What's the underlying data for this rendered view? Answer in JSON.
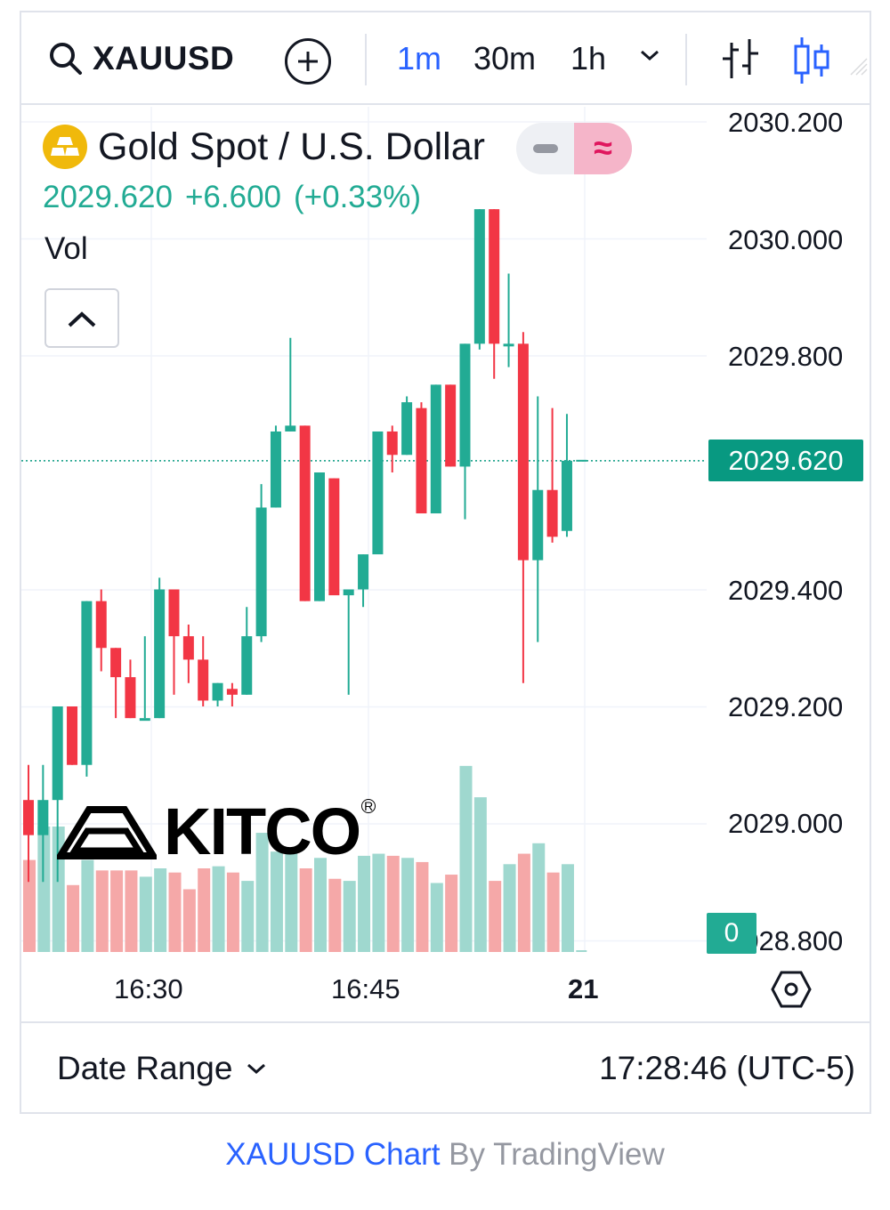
{
  "toolbar": {
    "symbol": "XAUUSD",
    "timeframes": [
      "1m",
      "30m",
      "1h"
    ],
    "active_timeframe": "1m"
  },
  "legend": {
    "title": "Gold Spot / U.S. Dollar",
    "last": "2029.620",
    "change": "+6.600",
    "change_pct": "(+0.33%)",
    "volume_label": "Vol"
  },
  "price_axis": {
    "labels": [
      "2030.200",
      "2030.000",
      "2029.800",
      "2029.400",
      "2029.200",
      "2029.000",
      "2028.800"
    ],
    "last_price_label": "2029.620",
    "volume_zero_label": "0"
  },
  "time_axis": {
    "labels": [
      "16:30",
      "16:45",
      "21"
    ]
  },
  "watermark": {
    "text": "KITCO"
  },
  "footer": {
    "date_range_label": "Date Range",
    "clock": "17:28:46 (UTC-5)"
  },
  "credit": {
    "symbol_link": "XAUUSD Chart",
    "by": " By TradingView"
  },
  "colors": {
    "up": "#22ab94",
    "down": "#f23645",
    "up_volume": "#9fd8cf",
    "down_volume": "#f5a8a8",
    "accent": "#2962ff"
  },
  "chart_data": {
    "type": "candlestick",
    "interval": "1m",
    "y_range": [
      2028.8,
      2030.22
    ],
    "last_price": 2029.62,
    "candles": [
      {
        "o": 2029.04,
        "h": 2029.1,
        "l": 2028.9,
        "c": 2028.98,
        "v": 0.44
      },
      {
        "o": 2028.98,
        "h": 2029.1,
        "l": 2028.9,
        "c": 2029.04,
        "v": 0.6
      },
      {
        "o": 2029.04,
        "h": 2029.2,
        "l": 2028.9,
        "c": 2029.2,
        "v": 0.6
      },
      {
        "o": 2029.2,
        "h": 2029.2,
        "l": 2029.1,
        "c": 2029.1,
        "v": 0.32
      },
      {
        "o": 2029.1,
        "h": 2029.38,
        "l": 2029.08,
        "c": 2029.38,
        "v": 0.44
      },
      {
        "o": 2029.38,
        "h": 2029.4,
        "l": 2029.26,
        "c": 2029.3,
        "v": 0.39
      },
      {
        "o": 2029.3,
        "h": 2029.3,
        "l": 2029.18,
        "c": 2029.25,
        "v": 0.39
      },
      {
        "o": 2029.25,
        "h": 2029.28,
        "l": 2029.18,
        "c": 2029.18,
        "v": 0.39
      },
      {
        "o": 2029.18,
        "h": 2029.32,
        "l": 2029.18,
        "c": 2029.18,
        "v": 0.36
      },
      {
        "o": 2029.18,
        "h": 2029.42,
        "l": 2029.18,
        "c": 2029.4,
        "v": 0.4
      },
      {
        "o": 2029.4,
        "h": 2029.4,
        "l": 2029.22,
        "c": 2029.32,
        "v": 0.38
      },
      {
        "o": 2029.32,
        "h": 2029.34,
        "l": 2029.24,
        "c": 2029.28,
        "v": 0.3
      },
      {
        "o": 2029.28,
        "h": 2029.32,
        "l": 2029.2,
        "c": 2029.21,
        "v": 0.4
      },
      {
        "o": 2029.21,
        "h": 2029.24,
        "l": 2029.2,
        "c": 2029.24,
        "v": 0.41
      },
      {
        "o": 2029.23,
        "h": 2029.24,
        "l": 2029.2,
        "c": 2029.22,
        "v": 0.38
      },
      {
        "o": 2029.22,
        "h": 2029.37,
        "l": 2029.22,
        "c": 2029.32,
        "v": 0.34
      },
      {
        "o": 2029.32,
        "h": 2029.58,
        "l": 2029.31,
        "c": 2029.54,
        "v": 0.57
      },
      {
        "o": 2029.54,
        "h": 2029.68,
        "l": 2029.54,
        "c": 2029.67,
        "v": 0.48
      },
      {
        "o": 2029.67,
        "h": 2029.83,
        "l": 2029.67,
        "c": 2029.68,
        "v": 0.49
      },
      {
        "o": 2029.68,
        "h": 2029.68,
        "l": 2029.38,
        "c": 2029.38,
        "v": 0.4
      },
      {
        "o": 2029.38,
        "h": 2029.6,
        "l": 2029.38,
        "c": 2029.6,
        "v": 0.45
      },
      {
        "o": 2029.59,
        "h": 2029.59,
        "l": 2029.4,
        "c": 2029.39,
        "v": 0.35
      },
      {
        "o": 2029.39,
        "h": 2029.4,
        "l": 2029.22,
        "c": 2029.4,
        "v": 0.34
      },
      {
        "o": 2029.4,
        "h": 2029.46,
        "l": 2029.37,
        "c": 2029.46,
        "v": 0.46
      },
      {
        "o": 2029.46,
        "h": 2029.67,
        "l": 2029.46,
        "c": 2029.67,
        "v": 0.47
      },
      {
        "o": 2029.67,
        "h": 2029.68,
        "l": 2029.6,
        "c": 2029.63,
        "v": 0.46
      },
      {
        "o": 2029.63,
        "h": 2029.73,
        "l": 2029.63,
        "c": 2029.72,
        "v": 0.45
      },
      {
        "o": 2029.71,
        "h": 2029.72,
        "l": 2029.53,
        "c": 2029.53,
        "v": 0.43
      },
      {
        "o": 2029.53,
        "h": 2029.75,
        "l": 2029.53,
        "c": 2029.75,
        "v": 0.33
      },
      {
        "o": 2029.75,
        "h": 2029.75,
        "l": 2029.61,
        "c": 2029.61,
        "v": 0.37
      },
      {
        "o": 2029.61,
        "h": 2029.82,
        "l": 2029.52,
        "c": 2029.82,
        "v": 0.89
      },
      {
        "o": 2029.82,
        "h": 2030.05,
        "l": 2029.81,
        "c": 2030.05,
        "v": 0.74
      },
      {
        "o": 2030.05,
        "h": 2030.05,
        "l": 2029.76,
        "c": 2029.82,
        "v": 0.34
      },
      {
        "o": 2029.82,
        "h": 2029.94,
        "l": 2029.78,
        "c": 2029.82,
        "v": 0.42
      },
      {
        "o": 2029.82,
        "h": 2029.84,
        "l": 2029.24,
        "c": 2029.45,
        "v": 0.47
      },
      {
        "o": 2029.45,
        "h": 2029.73,
        "l": 2029.31,
        "c": 2029.57,
        "v": 0.52
      },
      {
        "o": 2029.57,
        "h": 2029.71,
        "l": 2029.48,
        "c": 2029.49,
        "v": 0.38
      },
      {
        "o": 2029.5,
        "h": 2029.7,
        "l": 2029.49,
        "c": 2029.62,
        "v": 0.42
      },
      {
        "o": 2029.62,
        "h": 2029.62,
        "l": 2029.62,
        "c": 2029.62,
        "v": 0.0
      }
    ]
  }
}
